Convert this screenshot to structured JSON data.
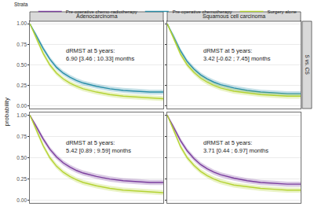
{
  "legend_title": "Strata",
  "y_label": "probability",
  "chart_data": [
    {
      "type": "line",
      "title": "Adenocarcinoma",
      "row_label": "S vs. CS",
      "annotation": "dRMST at 5 years:\n6.90 [3.46 ; 10.33] months",
      "x": [
        0,
        0.5,
        1,
        1.5,
        2,
        2.5,
        3,
        3.5,
        4,
        5,
        6,
        7,
        8,
        9,
        10
      ],
      "xlim": [
        0,
        10
      ],
      "ylim": [
        -0.03,
        1.03
      ],
      "yticks": [
        {
          "value": 0,
          "label": "0.00"
        },
        {
          "value": 0.25,
          "label": "0.25"
        },
        {
          "value": 0.5,
          "label": "0.50"
        },
        {
          "value": 0.75,
          "label": "0.75"
        },
        {
          "value": 1,
          "label": "1.00"
        }
      ],
      "grid": true,
      "tick_labels": "y",
      "series": [
        {
          "name": "Pre-operative chemotherapy",
          "color": "#2a8ea8",
          "values": [
            1,
            0.85,
            0.7,
            0.57,
            0.47,
            0.4,
            0.35,
            0.31,
            0.28,
            0.24,
            0.21,
            0.19,
            0.18,
            0.17,
            0.17
          ],
          "lower": [
            1,
            0.82,
            0.67,
            0.54,
            0.44,
            0.37,
            0.32,
            0.28,
            0.25,
            0.21,
            0.18,
            0.16,
            0.15,
            0.14,
            0.14
          ],
          "upper": [
            1,
            0.88,
            0.73,
            0.6,
            0.5,
            0.43,
            0.38,
            0.34,
            0.31,
            0.27,
            0.24,
            0.22,
            0.21,
            0.2,
            0.2
          ]
        },
        {
          "name": "Surgery alone",
          "color": "#b5d334",
          "values": [
            1,
            0.82,
            0.64,
            0.5,
            0.4,
            0.33,
            0.28,
            0.24,
            0.21,
            0.17,
            0.14,
            0.12,
            0.11,
            0.1,
            0.09
          ],
          "lower": [
            1,
            0.79,
            0.61,
            0.47,
            0.37,
            0.3,
            0.25,
            0.21,
            0.18,
            0.14,
            0.11,
            0.09,
            0.08,
            0.07,
            0.06
          ],
          "upper": [
            1,
            0.85,
            0.67,
            0.53,
            0.43,
            0.36,
            0.31,
            0.27,
            0.24,
            0.2,
            0.17,
            0.15,
            0.14,
            0.13,
            0.12
          ]
        }
      ]
    },
    {
      "type": "line",
      "title": "Squamous cell carcinoma",
      "row_label": "S vs. CS",
      "annotation": "dRMST at 5 years:\n3.42 [-0.62 ; 7.45] months",
      "x": [
        0,
        0.5,
        1,
        1.5,
        2,
        2.5,
        3,
        3.5,
        4,
        5,
        6,
        7,
        8,
        9,
        10
      ],
      "xlim": [
        0,
        10
      ],
      "ylim": [
        -0.03,
        1.03
      ],
      "yticks": [
        {
          "value": 0,
          "label": "0.00"
        },
        {
          "value": 0.25,
          "label": "0.25"
        },
        {
          "value": 0.5,
          "label": "0.50"
        },
        {
          "value": 0.75,
          "label": "0.75"
        },
        {
          "value": 1,
          "label": "1.00"
        }
      ],
      "grid": true,
      "tick_labels": false,
      "series": [
        {
          "name": "Pre-operative chemotherapy",
          "color": "#2a8ea8",
          "values": [
            1,
            0.84,
            0.67,
            0.54,
            0.45,
            0.38,
            0.33,
            0.29,
            0.26,
            0.22,
            0.19,
            0.17,
            0.16,
            0.15,
            0.15
          ],
          "lower": [
            1,
            0.81,
            0.64,
            0.51,
            0.42,
            0.35,
            0.3,
            0.26,
            0.23,
            0.19,
            0.16,
            0.14,
            0.13,
            0.12,
            0.12
          ],
          "upper": [
            1,
            0.87,
            0.7,
            0.57,
            0.48,
            0.41,
            0.36,
            0.32,
            0.29,
            0.25,
            0.22,
            0.2,
            0.19,
            0.18,
            0.18
          ]
        },
        {
          "name": "Surgery alone",
          "color": "#b5d334",
          "values": [
            1,
            0.82,
            0.63,
            0.5,
            0.41,
            0.34,
            0.29,
            0.25,
            0.22,
            0.18,
            0.16,
            0.14,
            0.13,
            0.12,
            0.12
          ],
          "lower": [
            1,
            0.79,
            0.6,
            0.47,
            0.38,
            0.31,
            0.26,
            0.22,
            0.19,
            0.15,
            0.13,
            0.11,
            0.1,
            0.09,
            0.09
          ],
          "upper": [
            1,
            0.85,
            0.66,
            0.53,
            0.44,
            0.37,
            0.32,
            0.28,
            0.25,
            0.21,
            0.19,
            0.17,
            0.16,
            0.15,
            0.15
          ]
        }
      ]
    },
    {
      "type": "line",
      "annotation": "dRMST at 5 years:\n5.42 [0.89 ; 9.59] months",
      "x": [
        0,
        0.5,
        1,
        1.5,
        2,
        2.5,
        3,
        3.5,
        4,
        5,
        6,
        7,
        8,
        9,
        10
      ],
      "xlim": [
        0,
        10
      ],
      "ylim": [
        -0.03,
        1.03
      ],
      "yticks": [
        {
          "value": 0,
          "label": "0.00"
        },
        {
          "value": 0.25,
          "label": "0.25"
        },
        {
          "value": 0.5,
          "label": "0.50"
        },
        {
          "value": 0.75,
          "label": "0.75"
        },
        {
          "value": 1,
          "label": "1.00"
        }
      ],
      "grid": true,
      "tick_labels": "y",
      "series": [
        {
          "name": "Pre-operative chemo-radiotherapy",
          "color": "#7b3f9e",
          "values": [
            1,
            0.86,
            0.72,
            0.6,
            0.51,
            0.44,
            0.39,
            0.35,
            0.32,
            0.28,
            0.25,
            0.23,
            0.22,
            0.21,
            0.21
          ],
          "lower": [
            1,
            0.83,
            0.69,
            0.57,
            0.48,
            0.41,
            0.36,
            0.32,
            0.29,
            0.25,
            0.22,
            0.2,
            0.19,
            0.18,
            0.18
          ],
          "upper": [
            1,
            0.89,
            0.75,
            0.63,
            0.54,
            0.47,
            0.42,
            0.38,
            0.35,
            0.31,
            0.28,
            0.26,
            0.25,
            0.24,
            0.24
          ]
        },
        {
          "name": "Surgery alone",
          "color": "#b5d334",
          "values": [
            1,
            0.82,
            0.64,
            0.5,
            0.4,
            0.33,
            0.28,
            0.24,
            0.21,
            0.17,
            0.14,
            0.12,
            0.11,
            0.1,
            0.09
          ],
          "lower": [
            1,
            0.79,
            0.61,
            0.47,
            0.37,
            0.3,
            0.25,
            0.21,
            0.18,
            0.14,
            0.11,
            0.09,
            0.08,
            0.07,
            0.06
          ],
          "upper": [
            1,
            0.85,
            0.67,
            0.53,
            0.43,
            0.36,
            0.31,
            0.27,
            0.24,
            0.2,
            0.17,
            0.15,
            0.14,
            0.13,
            0.12
          ]
        }
      ]
    },
    {
      "type": "line",
      "annotation": "dRMST at 5 years:\n3.71 [0.44 ; 6.97] months",
      "x": [
        0,
        0.5,
        1,
        1.5,
        2,
        2.5,
        3,
        3.5,
        4,
        5,
        6,
        7,
        8,
        9,
        10
      ],
      "xlim": [
        0,
        10
      ],
      "ylim": [
        -0.03,
        1.03
      ],
      "yticks": [
        {
          "value": 0,
          "label": "0.00"
        },
        {
          "value": 0.25,
          "label": "0.25"
        },
        {
          "value": 0.5,
          "label": "0.50"
        },
        {
          "value": 0.75,
          "label": "0.75"
        },
        {
          "value": 1,
          "label": "1.00"
        }
      ],
      "grid": true,
      "tick_labels": false,
      "series": [
        {
          "name": "Pre-operative chemo-radiotherapy",
          "color": "#7b3f9e",
          "values": [
            1,
            0.85,
            0.7,
            0.58,
            0.49,
            0.42,
            0.37,
            0.33,
            0.3,
            0.26,
            0.23,
            0.21,
            0.2,
            0.19,
            0.19
          ],
          "lower": [
            1,
            0.82,
            0.67,
            0.55,
            0.46,
            0.39,
            0.34,
            0.3,
            0.27,
            0.23,
            0.2,
            0.18,
            0.17,
            0.16,
            0.16
          ],
          "upper": [
            1,
            0.88,
            0.73,
            0.61,
            0.52,
            0.45,
            0.4,
            0.36,
            0.33,
            0.29,
            0.26,
            0.24,
            0.23,
            0.22,
            0.22
          ]
        },
        {
          "name": "Surgery alone",
          "color": "#b5d334",
          "values": [
            1,
            0.82,
            0.63,
            0.5,
            0.41,
            0.34,
            0.29,
            0.25,
            0.22,
            0.18,
            0.16,
            0.14,
            0.13,
            0.12,
            0.12
          ],
          "lower": [
            1,
            0.79,
            0.6,
            0.47,
            0.38,
            0.31,
            0.26,
            0.22,
            0.19,
            0.15,
            0.13,
            0.11,
            0.1,
            0.09,
            0.09
          ],
          "upper": [
            1,
            0.85,
            0.66,
            0.53,
            0.44,
            0.37,
            0.32,
            0.28,
            0.25,
            0.21,
            0.19,
            0.17,
            0.16,
            0.15,
            0.15
          ]
        }
      ]
    }
  ]
}
